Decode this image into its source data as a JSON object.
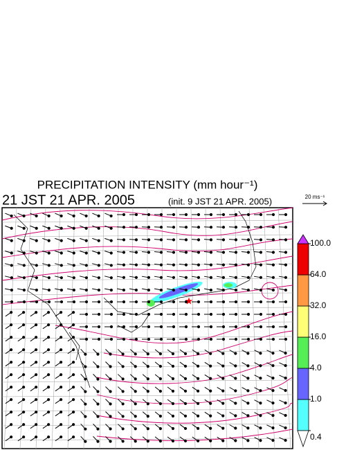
{
  "header": {
    "title": "PRECIPITATION INTENSITY (mm hour⁻¹)",
    "time": "21 JST 21 APR. 2005",
    "init": "(init. 9 JST 21 APR. 2005)",
    "vector_scale": "20 ms⁻¹"
  },
  "colorbar": {
    "levels": [
      {
        "value": 0.4,
        "label": "0.4"
      },
      {
        "value": 1,
        "label": "1.0"
      },
      {
        "value": 4,
        "label": "4.0"
      },
      {
        "value": 16,
        "label": "16.0"
      },
      {
        "value": 32,
        "label": "32.0"
      },
      {
        "value": 64,
        "label": "64.0"
      },
      {
        "value": 100,
        "label": "100.0"
      }
    ],
    "colors": [
      "#55ffff",
      "#6666ff",
      "#55ee55",
      "#ffff77",
      "#ff9944",
      "#ee0000"
    ],
    "over_color": "#cc33ff",
    "under_color": "#ffffff"
  }
}
